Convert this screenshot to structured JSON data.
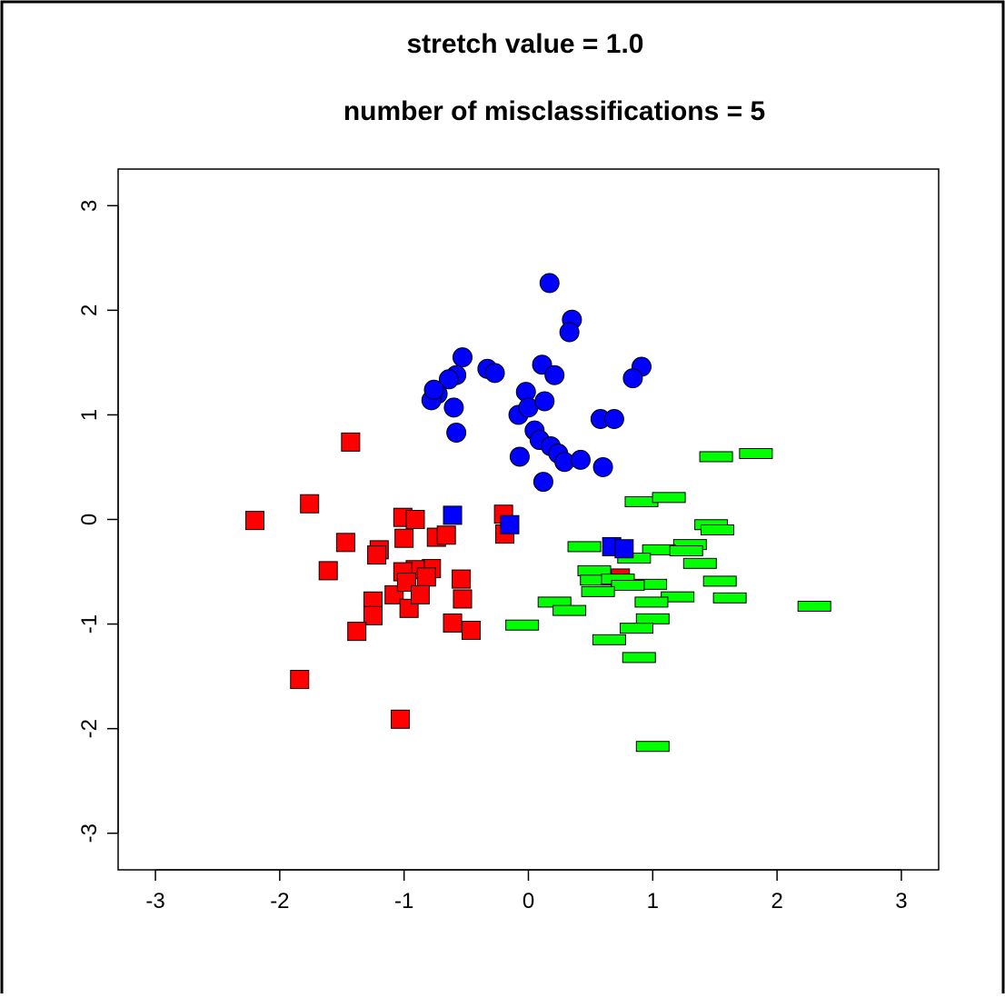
{
  "chart_data": {
    "type": "scatter",
    "title": "stretch value = 1.0",
    "subtitle": "number of misclassifications = 5",
    "xlabel": "",
    "ylabel": "",
    "xlim": [
      -3.3,
      3.3
    ],
    "ylim": [
      -3.35,
      3.35
    ],
    "xticks": [
      -3,
      -2,
      -1,
      0,
      1,
      2,
      3
    ],
    "yticks": [
      -3,
      -2,
      -1,
      0,
      1,
      2,
      3
    ],
    "xtick_labels": [
      "-3",
      "-2",
      "-1",
      "0",
      "1",
      "2",
      "3"
    ],
    "ytick_labels": [
      "-3",
      "-2",
      "-1",
      "0",
      "1",
      "2",
      "3"
    ],
    "grid": false,
    "legend": "none",
    "colors": {
      "red": "#ff0000",
      "blue": "#0000ff",
      "green": "#00ff00",
      "outline": "#000000"
    },
    "series": [
      {
        "color": "#0000ff",
        "marker": "circle",
        "points": [
          [
            0.17,
            2.26
          ],
          [
            0.35,
            1.91
          ],
          [
            0.33,
            1.79
          ],
          [
            0.91,
            1.46
          ],
          [
            0.84,
            1.35
          ],
          [
            0.11,
            1.48
          ],
          [
            0.21,
            1.38
          ],
          [
            -0.53,
            1.55
          ],
          [
            -0.33,
            1.44
          ],
          [
            -0.27,
            1.4
          ],
          [
            -0.58,
            1.38
          ],
          [
            -0.64,
            1.34
          ],
          [
            -0.73,
            1.2
          ],
          [
            -0.78,
            1.14
          ],
          [
            -0.76,
            1.24
          ],
          [
            -0.6,
            1.07
          ],
          [
            -0.02,
            1.22
          ],
          [
            -0.08,
            1.0
          ],
          [
            0.0,
            1.07
          ],
          [
            0.13,
            1.13
          ],
          [
            0.05,
            0.85
          ],
          [
            0.58,
            0.96
          ],
          [
            0.69,
            0.96
          ],
          [
            -0.58,
            0.83
          ],
          [
            0.09,
            0.76
          ],
          [
            0.18,
            0.7
          ],
          [
            0.24,
            0.63
          ],
          [
            0.29,
            0.55
          ],
          [
            0.42,
            0.57
          ],
          [
            -0.07,
            0.6
          ],
          [
            0.6,
            0.5
          ],
          [
            0.12,
            0.36
          ]
        ]
      },
      {
        "color": "#ff0000",
        "marker": "square",
        "points": [
          [
            -1.43,
            0.74
          ],
          [
            -2.2,
            -0.01
          ],
          [
            -1.76,
            0.15
          ],
          [
            -1.47,
            -0.22
          ],
          [
            -1.61,
            -0.49
          ],
          [
            -1.2,
            -0.29
          ],
          [
            -1.22,
            -0.34
          ],
          [
            -1.01,
            0.02
          ],
          [
            -0.91,
            0.0
          ],
          [
            -1.0,
            -0.18
          ],
          [
            -0.74,
            -0.17
          ],
          [
            -0.66,
            -0.15
          ],
          [
            -0.78,
            -0.47
          ],
          [
            -0.91,
            -0.48
          ],
          [
            -1.01,
            -0.5
          ],
          [
            -0.82,
            -0.55
          ],
          [
            -0.54,
            -0.57
          ],
          [
            -1.08,
            -0.72
          ],
          [
            -1.25,
            -0.78
          ],
          [
            -0.98,
            -0.6
          ],
          [
            -0.96,
            -0.85
          ],
          [
            -0.87,
            -0.72
          ],
          [
            -0.53,
            -0.76
          ],
          [
            -1.25,
            -0.92
          ],
          [
            -1.38,
            -1.07
          ],
          [
            -0.61,
            -0.99
          ],
          [
            -0.46,
            -1.06
          ],
          [
            -1.84,
            -1.53
          ],
          [
            -1.03,
            -1.91
          ],
          [
            -0.2,
            0.05
          ],
          [
            -0.19,
            -0.14
          ],
          [
            0.74,
            -0.56
          ]
        ]
      },
      {
        "color": "#00ff00",
        "marker": "rect",
        "points": [
          [
            1.83,
            0.63
          ],
          [
            1.51,
            0.6
          ],
          [
            0.91,
            0.17
          ],
          [
            1.13,
            0.21
          ],
          [
            1.47,
            -0.05
          ],
          [
            1.52,
            -0.1
          ],
          [
            0.45,
            -0.26
          ],
          [
            1.3,
            -0.24
          ],
          [
            1.05,
            -0.29
          ],
          [
            1.27,
            -0.3
          ],
          [
            0.85,
            -0.37
          ],
          [
            1.38,
            -0.42
          ],
          [
            0.53,
            -0.49
          ],
          [
            0.55,
            -0.58
          ],
          [
            0.72,
            -0.57
          ],
          [
            0.98,
            -0.62
          ],
          [
            1.54,
            -0.59
          ],
          [
            0.8,
            -0.63
          ],
          [
            0.56,
            -0.69
          ],
          [
            1.2,
            -0.74
          ],
          [
            1.62,
            -0.75
          ],
          [
            0.99,
            -0.79
          ],
          [
            0.21,
            -0.79
          ],
          [
            0.33,
            -0.87
          ],
          [
            2.3,
            -0.83
          ],
          [
            1.0,
            -0.95
          ],
          [
            0.87,
            -1.04
          ],
          [
            0.65,
            -1.15
          ],
          [
            0.89,
            -1.32
          ],
          [
            1.0,
            -2.17
          ],
          [
            -0.05,
            -1.01
          ]
        ]
      },
      {
        "color": "#0000ff",
        "marker": "square",
        "points": [
          [
            -0.61,
            0.04
          ],
          [
            -0.15,
            -0.05
          ],
          [
            0.67,
            -0.26
          ],
          [
            0.77,
            -0.28
          ]
        ]
      }
    ]
  }
}
